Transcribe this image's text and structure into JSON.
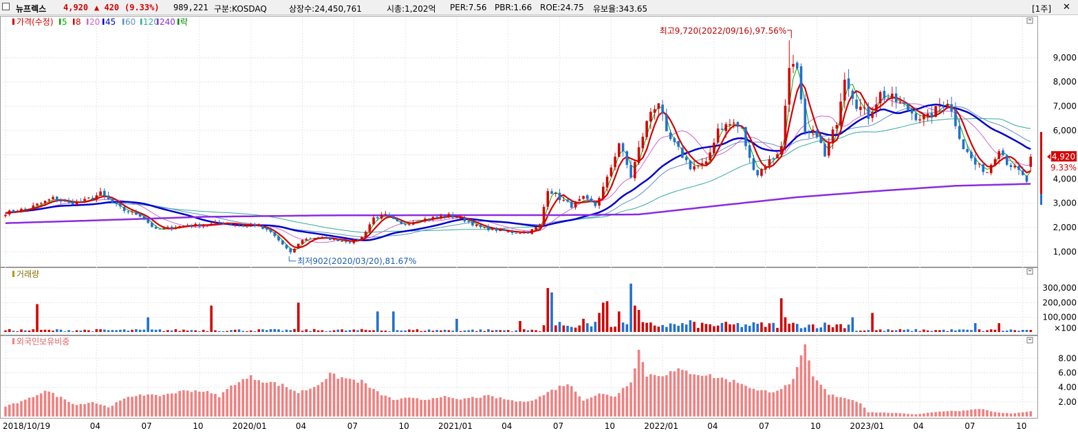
{
  "header": {
    "stock_name": "뉴프렉스",
    "price": "4,920",
    "change": "▲ 420",
    "change_pct": "(9.33%)",
    "volume": "989,221",
    "market": "구분:KOSDAQ",
    "shares": "상장수:24,450,761",
    "market_cap": "시총:1,202억",
    "per": "PER:7.56",
    "pbr": "PBR:1.66",
    "roe": "ROE:24.75",
    "reserve": "유보율:343.65",
    "period_button": "[1주]"
  },
  "legend": {
    "price_label": "가격(수정)",
    "ma": [
      {
        "label": "5",
        "color": "#00aa00"
      },
      {
        "label": "8",
        "color": "#d40000"
      },
      {
        "label": "20",
        "color": "#cc66cc"
      },
      {
        "label": "45",
        "color": "#0000cc"
      },
      {
        "label": "60",
        "color": "#5a8fc4"
      },
      {
        "label": "120",
        "color": "#33aa99"
      },
      {
        "label": "240",
        "color": "#8a2be2"
      },
      {
        "label": "락",
        "color": "#008800"
      }
    ],
    "volume_label": "거래량",
    "foreign_label": "외국인보유비중"
  },
  "colors": {
    "up": "#d40000",
    "down": "#1f6fd0",
    "foreign_bar": "#f08080",
    "price_tag": "#d40000"
  },
  "annotations": {
    "high": "최고9,720(2022/09/16),97.56%",
    "low": "최저902(2020/03/20),81.67%",
    "last_price": "4,920",
    "last_pct": "9.33%"
  },
  "chart_data": [
    {
      "type": "candlestick",
      "name": "가격(수정)",
      "period": "weekly",
      "ylim": [
        500,
        10300
      ],
      "y_ticks": [
        "1,000",
        "2,000",
        "3,000",
        "4,000",
        "5,000",
        "6,000",
        "7,000",
        "8,000",
        "9,000"
      ],
      "x_ticks": [
        "2018/10/19",
        "04",
        "07",
        "10",
        "2020/01",
        "04",
        "07",
        "10",
        "2021/01",
        "04",
        "07",
        "10",
        "2022/01",
        "04",
        "07",
        "10",
        "2023/01",
        "04",
        "07",
        "10"
      ],
      "x_tick_weeks": [
        0,
        23,
        36,
        49,
        62,
        75,
        88,
        101,
        114,
        127,
        140,
        153,
        166,
        179,
        192,
        205,
        218,
        231,
        244,
        257
      ],
      "anchors_close": [
        [
          0,
          2600
        ],
        [
          3,
          2700
        ],
        [
          6,
          2800
        ],
        [
          9,
          3000
        ],
        [
          12,
          3200
        ],
        [
          16,
          3000
        ],
        [
          20,
          3100
        ],
        [
          24,
          3400
        ],
        [
          27,
          3000
        ],
        [
          30,
          2700
        ],
        [
          34,
          2500
        ],
        [
          38,
          1900
        ],
        [
          42,
          2000
        ],
        [
          46,
          2100
        ],
        [
          50,
          2100
        ],
        [
          55,
          2200
        ],
        [
          59,
          2100
        ],
        [
          63,
          2100
        ],
        [
          67,
          1800
        ],
        [
          70,
          1300
        ],
        [
          72,
          950
        ],
        [
          75,
          1500
        ],
        [
          79,
          1600
        ],
        [
          83,
          1500
        ],
        [
          87,
          1400
        ],
        [
          90,
          1600
        ],
        [
          93,
          2400
        ],
        [
          96,
          2500
        ],
        [
          100,
          2100
        ],
        [
          104,
          2300
        ],
        [
          108,
          2400
        ],
        [
          112,
          2500
        ],
        [
          116,
          2300
        ],
        [
          120,
          2000
        ],
        [
          124,
          1900
        ],
        [
          128,
          1800
        ],
        [
          132,
          1800
        ],
        [
          135,
          2100
        ],
        [
          137,
          3600
        ],
        [
          140,
          3200
        ],
        [
          143,
          2900
        ],
        [
          146,
          3200
        ],
        [
          149,
          2900
        ],
        [
          152,
          4000
        ],
        [
          155,
          5500
        ],
        [
          158,
          4100
        ],
        [
          161,
          5800
        ],
        [
          163,
          6800
        ],
        [
          165,
          7200
        ],
        [
          167,
          5800
        ],
        [
          170,
          5200
        ],
        [
          173,
          4500
        ],
        [
          177,
          4600
        ],
        [
          180,
          6100
        ],
        [
          184,
          6300
        ],
        [
          186,
          6000
        ],
        [
          188,
          4800
        ],
        [
          190,
          4200
        ],
        [
          192,
          4600
        ],
        [
          194,
          4900
        ],
        [
          196,
          5300
        ],
        [
          198,
          8800
        ],
        [
          200,
          8400
        ],
        [
          202,
          5800
        ],
        [
          205,
          5900
        ],
        [
          207,
          4900
        ],
        [
          210,
          6400
        ],
        [
          212,
          8300
        ],
        [
          215,
          7100
        ],
        [
          218,
          6600
        ],
        [
          221,
          7500
        ],
        [
          224,
          7300
        ],
        [
          227,
          7000
        ],
        [
          230,
          6600
        ],
        [
          233,
          6500
        ],
        [
          236,
          7000
        ],
        [
          238,
          7200
        ],
        [
          240,
          6300
        ],
        [
          242,
          5300
        ],
        [
          245,
          4600
        ],
        [
          248,
          4300
        ],
        [
          251,
          5300
        ],
        [
          253,
          4700
        ],
        [
          256,
          4300
        ],
        [
          258,
          3900
        ],
        [
          259,
          4920
        ]
      ],
      "ma_smoothing": {
        "5": 3,
        "8": 5,
        "20": 12,
        "45": 25,
        "60": 32,
        "120": 55
      },
      "ma240": [
        [
          0,
          2180
        ],
        [
          20,
          2280
        ],
        [
          50,
          2440
        ],
        [
          80,
          2500
        ],
        [
          110,
          2510
        ],
        [
          140,
          2510
        ],
        [
          160,
          2540
        ],
        [
          180,
          2900
        ],
        [
          200,
          3250
        ],
        [
          220,
          3500
        ],
        [
          240,
          3720
        ],
        [
          259,
          3800
        ]
      ],
      "high": {
        "value": 9720,
        "date": "2022/09/16",
        "pct": 97.56,
        "week": 198
      },
      "low": {
        "value": 902,
        "date": "2020/03/20",
        "pct": 81.67,
        "week": 72
      },
      "last": {
        "value": 4920,
        "pct": 9.33
      }
    },
    {
      "type": "bar",
      "name": "거래량",
      "ylim": [
        0,
        380000
      ],
      "y_ticks": [
        "300,000",
        "200,000",
        "100,000",
        "×100"
      ],
      "spikes": [
        [
          8,
          190000
        ],
        [
          36,
          100000
        ],
        [
          52,
          180000
        ],
        [
          74,
          200000
        ],
        [
          94,
          140000
        ],
        [
          98,
          140000
        ],
        [
          114,
          90000
        ],
        [
          130,
          75000
        ],
        [
          137,
          300000
        ],
        [
          138,
          270000
        ],
        [
          146,
          90000
        ],
        [
          150,
          130000
        ],
        [
          151,
          200000
        ],
        [
          152,
          210000
        ],
        [
          155,
          140000
        ],
        [
          158,
          330000
        ],
        [
          159,
          180000
        ],
        [
          160,
          150000
        ],
        [
          173,
          80000
        ],
        [
          196,
          230000
        ],
        [
          197,
          100000
        ],
        [
          214,
          100000
        ],
        [
          219,
          130000
        ],
        [
          245,
          60000
        ],
        [
          251,
          60000
        ]
      ]
    },
    {
      "type": "bar",
      "name": "외국인보유비중",
      "ylim": [
        0,
        10.2
      ],
      "y_ticks": [
        "2.00",
        "4.00",
        "6.00",
        "8.00"
      ],
      "anchors": [
        [
          0,
          1.4
        ],
        [
          5,
          2.2
        ],
        [
          10,
          3.6
        ],
        [
          14,
          2.6
        ],
        [
          18,
          1.6
        ],
        [
          22,
          2.0
        ],
        [
          26,
          1.3
        ],
        [
          30,
          2.4
        ],
        [
          34,
          3.1
        ],
        [
          38,
          2.8
        ],
        [
          42,
          3.2
        ],
        [
          46,
          3.6
        ],
        [
          50,
          3.5
        ],
        [
          54,
          2.8
        ],
        [
          58,
          4.6
        ],
        [
          62,
          5.4
        ],
        [
          66,
          4.8
        ],
        [
          70,
          4.3
        ],
        [
          74,
          3.3
        ],
        [
          78,
          4.1
        ],
        [
          82,
          5.7
        ],
        [
          86,
          5.2
        ],
        [
          90,
          4.8
        ],
        [
          94,
          3.3
        ],
        [
          98,
          2.3
        ],
        [
          102,
          2.5
        ],
        [
          106,
          2.3
        ],
        [
          110,
          2.8
        ],
        [
          114,
          2.3
        ],
        [
          118,
          2.6
        ],
        [
          122,
          2.8
        ],
        [
          126,
          2.4
        ],
        [
          130,
          2.0
        ],
        [
          134,
          2.4
        ],
        [
          138,
          3.6
        ],
        [
          142,
          4.6
        ],
        [
          146,
          2.3
        ],
        [
          150,
          3.1
        ],
        [
          154,
          2.8
        ],
        [
          158,
          4.9
        ],
        [
          160,
          9.1
        ],
        [
          162,
          5.7
        ],
        [
          166,
          5.8
        ],
        [
          170,
          6.3
        ],
        [
          174,
          6.0
        ],
        [
          178,
          5.6
        ],
        [
          182,
          5.1
        ],
        [
          186,
          4.6
        ],
        [
          190,
          3.5
        ],
        [
          194,
          3.5
        ],
        [
          198,
          4.3
        ],
        [
          200,
          6.5
        ],
        [
          202,
          9.4
        ],
        [
          204,
          5.4
        ],
        [
          206,
          4.3
        ],
        [
          208,
          3.0
        ],
        [
          212,
          2.6
        ],
        [
          216,
          1.9
        ],
        [
          218,
          0.6
        ],
        [
          224,
          0.5
        ],
        [
          230,
          0.3
        ],
        [
          236,
          0.7
        ],
        [
          242,
          0.8
        ],
        [
          246,
          1.1
        ],
        [
          250,
          0.6
        ],
        [
          254,
          0.4
        ],
        [
          259,
          0.7
        ]
      ]
    }
  ]
}
